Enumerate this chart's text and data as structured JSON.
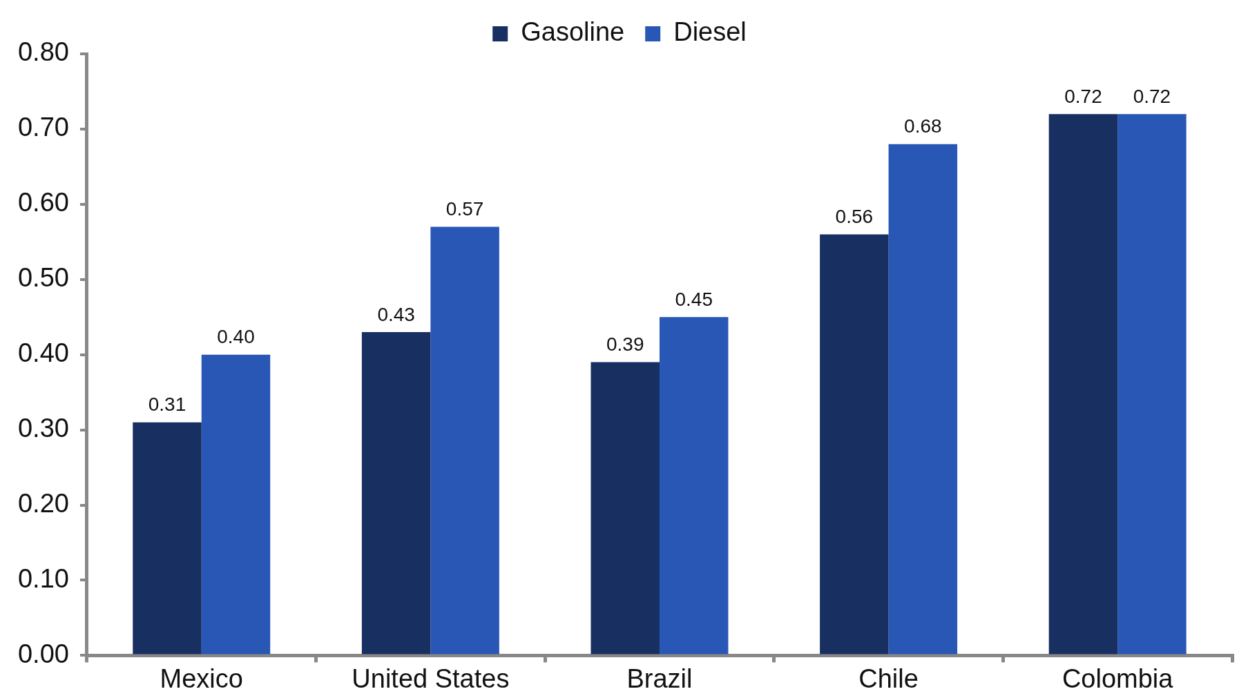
{
  "chart_data": {
    "type": "bar",
    "categories": [
      "Mexico",
      "United States",
      "Brazil",
      "Chile",
      "Colombia"
    ],
    "series": [
      {
        "name": "Gasoline",
        "color": "#172f61",
        "values": [
          0.31,
          0.43,
          0.39,
          0.56,
          0.72
        ],
        "value_labels": [
          "0.31",
          "0.43",
          "0.39",
          "0.56",
          "0.72"
        ]
      },
      {
        "name": "Diesel",
        "color": "#2957b5",
        "values": [
          0.4,
          0.57,
          0.45,
          0.68,
          0.72
        ],
        "value_labels": [
          "0.40",
          "0.57",
          "0.45",
          "0.68",
          "0.72"
        ]
      }
    ],
    "ylim": [
      0,
      0.8
    ],
    "yticks": [
      {
        "value": 0,
        "label": "0.00"
      },
      {
        "value": 0.1,
        "label": "0.10"
      },
      {
        "value": 0.2,
        "label": "0.20"
      },
      {
        "value": 0.3,
        "label": "0.30"
      },
      {
        "value": 0.4,
        "label": "0.40"
      },
      {
        "value": 0.5,
        "label": "0.50"
      },
      {
        "value": 0.6,
        "label": "0.60"
      },
      {
        "value": 0.7,
        "label": "0.70"
      },
      {
        "value": 0.8,
        "label": "0.80"
      }
    ],
    "grid": false,
    "legend": "top"
  }
}
